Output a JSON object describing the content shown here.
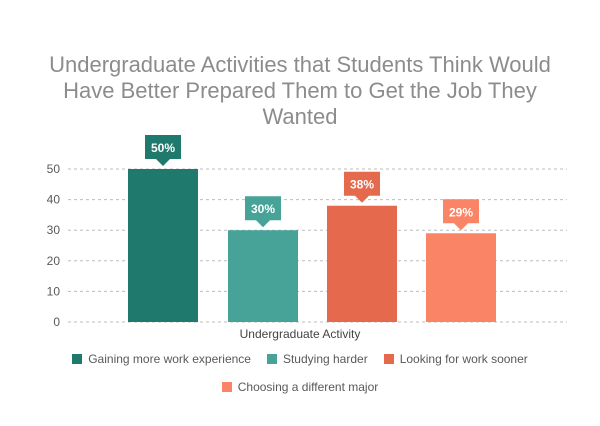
{
  "chart_data": {
    "type": "bar",
    "title": "Undergraduate Activities that Students Think Would Have Better Prepared Them to Get the Job They Wanted",
    "xlabel": "Undergraduate Activity",
    "ylabel": "",
    "ylim": [
      0,
      50
    ],
    "yticks": [
      0,
      10,
      20,
      30,
      40,
      50
    ],
    "grid": true,
    "legend_position": "bottom",
    "categories": [
      "Undergraduate Activity"
    ],
    "series": [
      {
        "name": "Gaining more work experience",
        "values": [
          50
        ],
        "data_label": "50%",
        "color": "#1f7a6d"
      },
      {
        "name": "Studying harder",
        "values": [
          30
        ],
        "data_label": "30%",
        "color": "#47a398"
      },
      {
        "name": "Looking for work sooner",
        "values": [
          38
        ],
        "data_label": "38%",
        "color": "#e5694d"
      },
      {
        "name": "Choosing a different major",
        "values": [
          29
        ],
        "data_label": "29%",
        "color": "#fa8466"
      }
    ]
  }
}
